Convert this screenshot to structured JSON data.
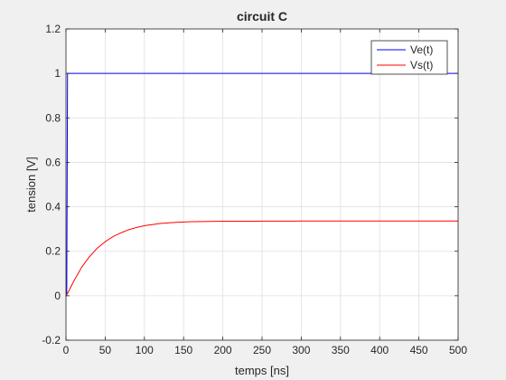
{
  "chart_data": {
    "type": "line",
    "title": "circuit C",
    "xlabel": "temps [ns]",
    "ylabel": "tension [V]",
    "xlim": [
      0,
      500
    ],
    "ylim": [
      -0.2,
      1.2
    ],
    "xticks": [
      0,
      50,
      100,
      150,
      200,
      250,
      300,
      350,
      400,
      450,
      500
    ],
    "yticks": [
      -0.2,
      0,
      0.2,
      0.4,
      0.6,
      0.8,
      1,
      1.2
    ],
    "xtick_labels": [
      "0",
      "50",
      "100",
      "150",
      "200",
      "250",
      "300",
      "350",
      "400",
      "450",
      "500"
    ],
    "ytick_labels": [
      "-0.2",
      "0",
      "0.2",
      "0.4",
      "0.6",
      "0.8",
      "1",
      "1.2"
    ],
    "grid": true,
    "legend_position": "top-right",
    "series": [
      {
        "name": "Ve(t)",
        "color": "#0000ff",
        "x": [
          0,
          1,
          2,
          500
        ],
        "y": [
          0,
          0,
          1,
          1
        ]
      },
      {
        "name": "Vs(t)",
        "color": "#ff0000",
        "x": [
          0,
          2,
          10,
          20,
          30,
          40,
          50,
          60,
          70,
          80,
          90,
          100,
          120,
          140,
          160,
          180,
          200,
          250,
          300,
          350,
          400,
          450,
          500
        ],
        "y": [
          0,
          0.01,
          0.066,
          0.128,
          0.176,
          0.214,
          0.243,
          0.266,
          0.283,
          0.297,
          0.307,
          0.315,
          0.325,
          0.33,
          0.333,
          0.334,
          0.335,
          0.3355,
          0.336,
          0.336,
          0.336,
          0.336,
          0.336
        ]
      }
    ]
  }
}
